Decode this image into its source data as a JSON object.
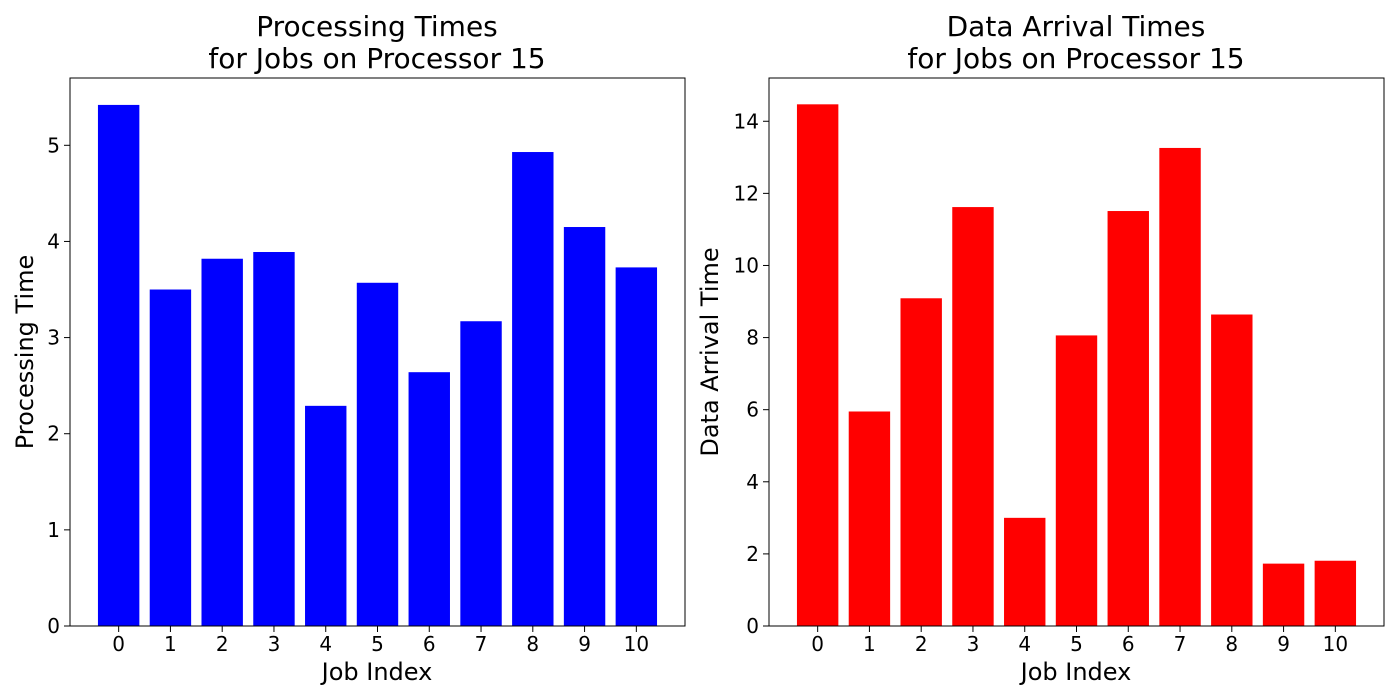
{
  "chart_data": [
    {
      "type": "bar",
      "title_lines": [
        "Processing Times",
        "for Jobs on Processor 15"
      ],
      "xlabel": "Job Index",
      "ylabel": "Processing Time",
      "categories": [
        "0",
        "1",
        "2",
        "3",
        "4",
        "5",
        "6",
        "7",
        "8",
        "9",
        "10"
      ],
      "values": [
        5.42,
        3.5,
        3.82,
        3.89,
        2.29,
        3.57,
        2.64,
        3.17,
        4.93,
        4.15,
        3.73
      ],
      "ylim": [
        0,
        5.7
      ],
      "yticks": [
        0,
        1,
        2,
        3,
        4,
        5
      ],
      "color": "#0000ff",
      "grid": false,
      "legend": "none"
    },
    {
      "type": "bar",
      "title_lines": [
        "Data Arrival Times",
        "for Jobs on Processor 15"
      ],
      "xlabel": "Job Index",
      "ylabel": "Data Arrival Time",
      "categories": [
        "0",
        "1",
        "2",
        "3",
        "4",
        "5",
        "6",
        "7",
        "8",
        "9",
        "10"
      ],
      "values": [
        14.47,
        5.95,
        9.09,
        11.62,
        3.0,
        8.06,
        11.51,
        13.26,
        8.64,
        1.73,
        1.81
      ],
      "ylim": [
        0,
        15.2
      ],
      "yticks": [
        0,
        2,
        4,
        6,
        8,
        10,
        12,
        14
      ],
      "color": "#ff0000",
      "grid": false,
      "legend": "none"
    }
  ]
}
